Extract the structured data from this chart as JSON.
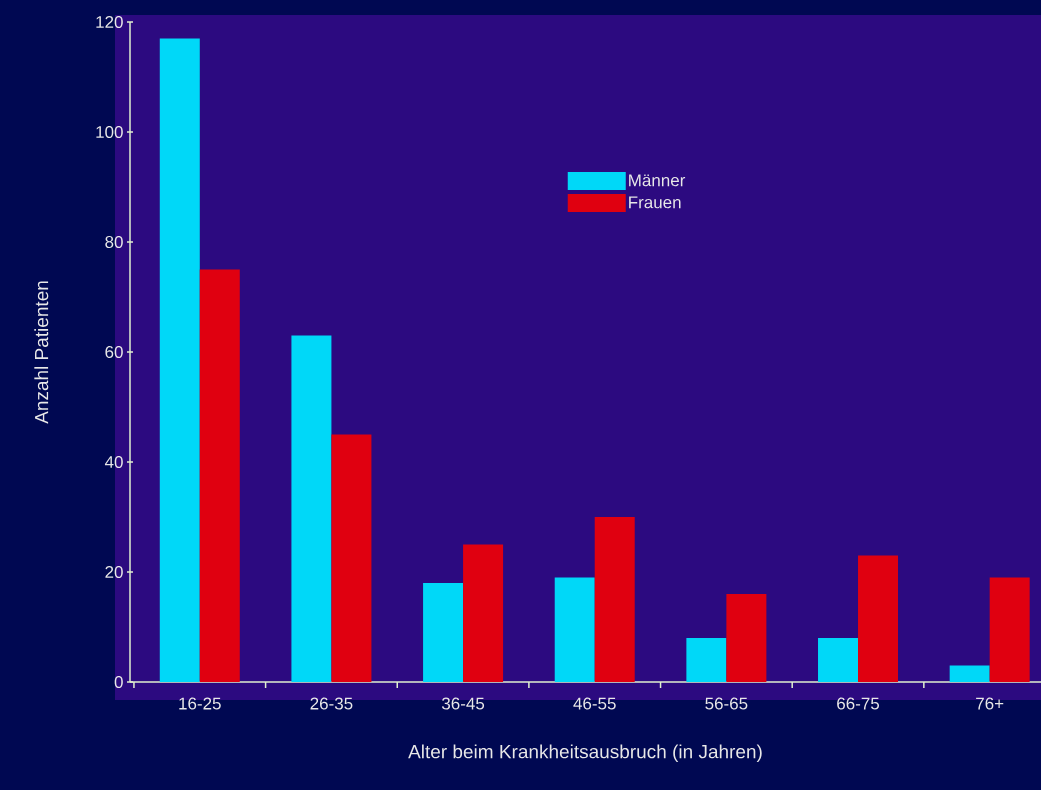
{
  "chart_data": {
    "type": "bar",
    "xlabel": "Alter beim Krankheitsausbruch (in Jahren)",
    "ylabel": "Anzahl Patienten",
    "categories": [
      "16-25",
      "26-35",
      "36-45",
      "46-55",
      "56-65",
      "66-75",
      "76+"
    ],
    "series": [
      {
        "name": "Männer",
        "color": "#00d8f8",
        "values": [
          117,
          63,
          18,
          19,
          8,
          8,
          3
        ]
      },
      {
        "name": "Frauen",
        "color": "#e00010",
        "values": [
          75,
          45,
          25,
          30,
          16,
          23,
          19
        ]
      }
    ],
    "ylim": [
      0,
      120
    ],
    "yticks": [
      0,
      20,
      40,
      60,
      80,
      100,
      120
    ],
    "legend": "top"
  }
}
